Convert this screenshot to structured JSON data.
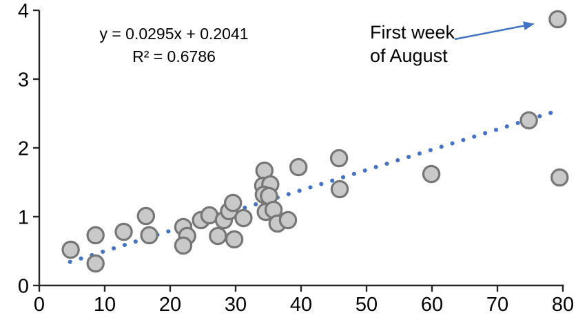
{
  "chart_data": {
    "type": "scatter",
    "title": "",
    "xlabel": "",
    "ylabel": "",
    "xlim": [
      0,
      80
    ],
    "ylim": [
      0,
      4
    ],
    "x_ticks": [
      "0",
      "10",
      "20",
      "30",
      "40",
      "50",
      "60",
      "70",
      "80"
    ],
    "x_tick_values": [
      0,
      10,
      20,
      30,
      40,
      50,
      60,
      70,
      80
    ],
    "y_ticks": [
      "0",
      "1",
      "2",
      "3",
      "4"
    ],
    "y_tick_values": [
      0,
      1,
      2,
      3,
      4
    ],
    "grid": "off",
    "equation_label": "y = 0.0295x + 0.2041",
    "r_squared_label": "R² = 0.6786",
    "annotation": {
      "line1": "First week",
      "line2": "of August",
      "target_point": [
        79.2,
        3.87
      ]
    },
    "points": [
      [
        4.8,
        0.52
      ],
      [
        8.6,
        0.73
      ],
      [
        8.6,
        0.32
      ],
      [
        12.9,
        0.78
      ],
      [
        16.3,
        1.01
      ],
      [
        16.8,
        0.73
      ],
      [
        22.0,
        0.85
      ],
      [
        22.6,
        0.72
      ],
      [
        22.0,
        0.58
      ],
      [
        24.7,
        0.95
      ],
      [
        26.0,
        1.02
      ],
      [
        27.3,
        0.72
      ],
      [
        28.2,
        0.95
      ],
      [
        29.0,
        1.08
      ],
      [
        29.6,
        1.2
      ],
      [
        29.8,
        0.67
      ],
      [
        31.2,
        0.98
      ],
      [
        34.4,
        1.67
      ],
      [
        34.2,
        1.45
      ],
      [
        35.3,
        1.47
      ],
      [
        34.3,
        1.32
      ],
      [
        35.1,
        1.3
      ],
      [
        34.6,
        1.07
      ],
      [
        35.8,
        1.1
      ],
      [
        36.4,
        0.9
      ],
      [
        38.0,
        0.95
      ],
      [
        39.6,
        1.72
      ],
      [
        45.8,
        1.85
      ],
      [
        45.9,
        1.4
      ],
      [
        59.9,
        1.62
      ],
      [
        74.8,
        2.4
      ],
      [
        79.5,
        1.57
      ],
      [
        79.2,
        3.87
      ]
    ],
    "trendline": {
      "slope": 0.0295,
      "intercept": 0.2041,
      "x_start": 4.7,
      "x_end": 78.8,
      "style": "dotted"
    },
    "colors": {
      "marker_fill": "#c9c9c9",
      "marker_stroke": "#767676",
      "trendline": "#4472c4",
      "arrow": "#4472c4",
      "axis": "#262626",
      "text": "#000000"
    }
  }
}
